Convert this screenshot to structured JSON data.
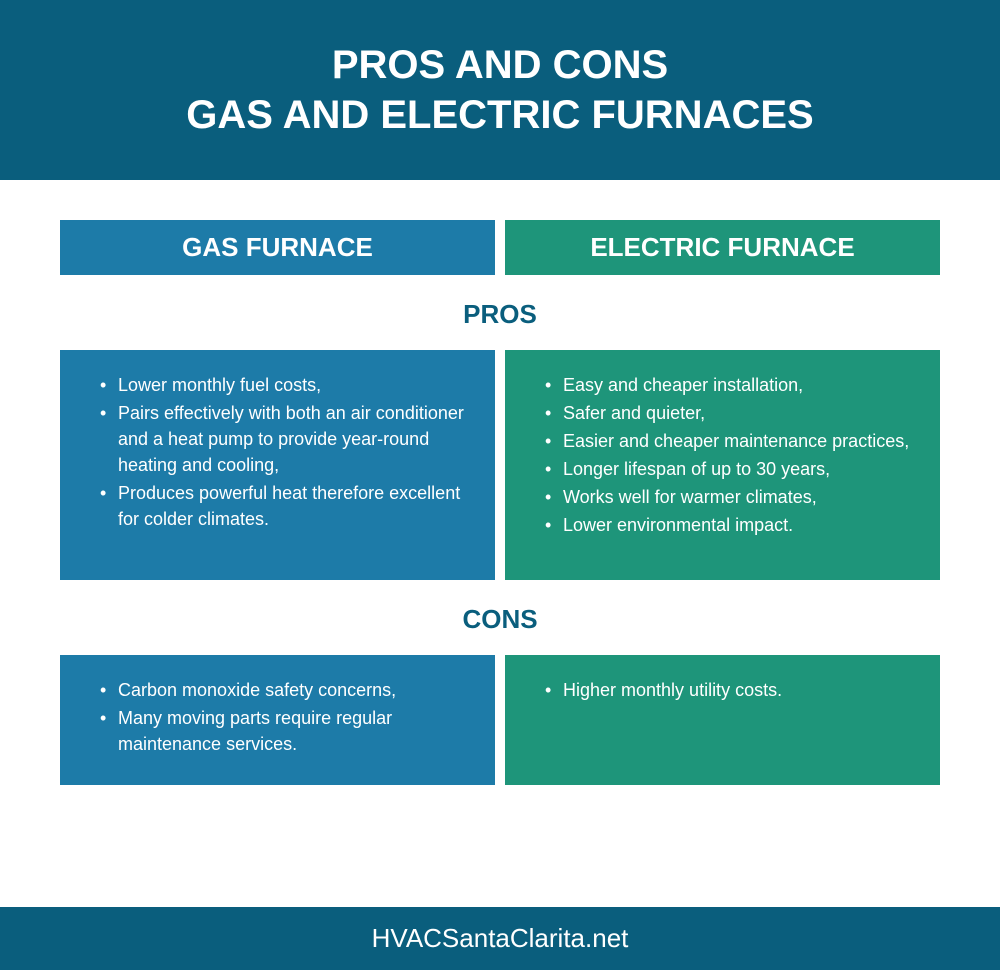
{
  "header": {
    "line1": "PROS AND CONS",
    "line2": "GAS AND ELECTRIC FURNACES"
  },
  "columns": {
    "gas": {
      "title": "GAS FURNACE",
      "color": "#1d7ba8",
      "pros": [
        "Lower monthly fuel costs,",
        "Pairs effectively with both an air conditioner and a heat pump to provide year-round heating and cooling,",
        "Produces powerful heat therefore excellent for colder climates."
      ],
      "cons": [
        "Carbon monoxide safety concerns,",
        "Many moving parts require regular maintenance services."
      ]
    },
    "electric": {
      "title": "ELECTRIC FURNACE",
      "color": "#1e957a",
      "pros": [
        "Easy and cheaper installation,",
        "Safer and quieter,",
        "Easier and cheaper maintenance practices,",
        "Longer lifespan of up to 30 years,",
        "Works well for warmer climates,",
        "Lower environmental impact."
      ],
      "cons": [
        "Higher monthly utility costs."
      ]
    }
  },
  "sections": {
    "pros_label": "PROS",
    "cons_label": "CONS"
  },
  "footer": {
    "text": "HVACSantaClarita.net"
  },
  "styles": {
    "header_bg": "#0a5e7d",
    "header_fontsize": 40,
    "section_label_color": "#0a5e7d",
    "section_label_fontsize": 26,
    "col_header_fontsize": 26,
    "body_fontsize": 18,
    "footer_fontsize": 26,
    "background_color": "#ffffff"
  }
}
